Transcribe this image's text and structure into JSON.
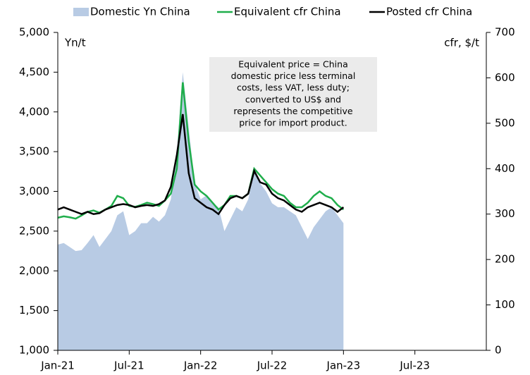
{
  "chart_data": {
    "type": "dual-axis-area-line",
    "ylabel": "Yn/t",
    "y2label": "cfr, $/t",
    "annotation": [
      "Equivalent price = China",
      "domestic price less terminal",
      "costs, less VAT, less duty;",
      "converted to US$ and",
      "represents the competitive",
      "price for import product."
    ],
    "legend": "top",
    "x": [
      0,
      0.5,
      1,
      1.5,
      2,
      2.5,
      3,
      3.5,
      4,
      4.5,
      5,
      5.5,
      6,
      6.5,
      7,
      7.5,
      8,
      8.5,
      9,
      9.5,
      10,
      10.5,
      11,
      11.5,
      12,
      12.5,
      13,
      13.5,
      14,
      14.5,
      15,
      15.5,
      16,
      16.5,
      17,
      17.5,
      18,
      18.5,
      19,
      19.5,
      20,
      20.5,
      21,
      21.5,
      22,
      22.5,
      23,
      23.5,
      24
    ],
    "xlim": [
      0,
      36
    ],
    "xticks": [
      {
        "value": 0,
        "label": "Jan-21"
      },
      {
        "value": 6,
        "label": "Jul-21"
      },
      {
        "value": 12,
        "label": "Jan-22"
      },
      {
        "value": 18,
        "label": "Jul-22"
      },
      {
        "value": 24,
        "label": "Jan-23"
      },
      {
        "value": 30,
        "label": "Jul-23"
      }
    ],
    "ylim": [
      1000,
      5000
    ],
    "yticks": [
      {
        "value": 1000,
        "label": "1,000"
      },
      {
        "value": 1500,
        "label": "1,500"
      },
      {
        "value": 2000,
        "label": "2,000"
      },
      {
        "value": 2500,
        "label": "2,500"
      },
      {
        "value": 3000,
        "label": "3,000"
      },
      {
        "value": 3500,
        "label": "3,500"
      },
      {
        "value": 4000,
        "label": "4,000"
      },
      {
        "value": 4500,
        "label": "4,500"
      },
      {
        "value": 5000,
        "label": "5,000"
      }
    ],
    "y2lim": [
      0,
      700
    ],
    "y2ticks": [
      0,
      100,
      200,
      300,
      400,
      500,
      600,
      700
    ],
    "series": [
      {
        "name": "Domestic Yn China",
        "color": "#b8cbe4",
        "kind": "area",
        "values": [
          2330,
          2350,
          2300,
          2250,
          2260,
          2350,
          2450,
          2300,
          2400,
          2500,
          2700,
          2750,
          2450,
          2500,
          2600,
          2600,
          2680,
          2620,
          2700,
          2900,
          3500,
          4500,
          3800,
          3100,
          2900,
          2950,
          2850,
          2800,
          2500,
          2650,
          2800,
          2750,
          2900,
          3250,
          3100,
          3000,
          2850,
          2800,
          2800,
          2750,
          2700,
          2550,
          2400,
          2550,
          2650,
          2750,
          2800,
          2700,
          2600
        ]
      },
      {
        "name": "Equivalent cfr China",
        "color": "#1fae4b",
        "kind": "line",
        "axis": "y2",
        "values": [
          292,
          295,
          293,
          290,
          297,
          305,
          308,
          303,
          310,
          318,
          340,
          335,
          318,
          316,
          320,
          325,
          322,
          318,
          330,
          345,
          400,
          590,
          460,
          365,
          350,
          340,
          325,
          310,
          320,
          340,
          340,
          335,
          345,
          400,
          385,
          370,
          355,
          345,
          340,
          325,
          315,
          315,
          325,
          340,
          350,
          340,
          335,
          320,
          310
        ]
      },
      {
        "name": "Posted cfr China",
        "color": "#000000",
        "kind": "line",
        "axis": "y2",
        "values": [
          310,
          315,
          310,
          305,
          300,
          305,
          300,
          302,
          310,
          315,
          320,
          322,
          320,
          315,
          318,
          320,
          318,
          322,
          330,
          360,
          430,
          520,
          390,
          335,
          325,
          315,
          310,
          300,
          320,
          335,
          340,
          335,
          345,
          395,
          370,
          365,
          345,
          335,
          330,
          320,
          310,
          305,
          315,
          320,
          325,
          320,
          315,
          305,
          315
        ]
      }
    ]
  }
}
